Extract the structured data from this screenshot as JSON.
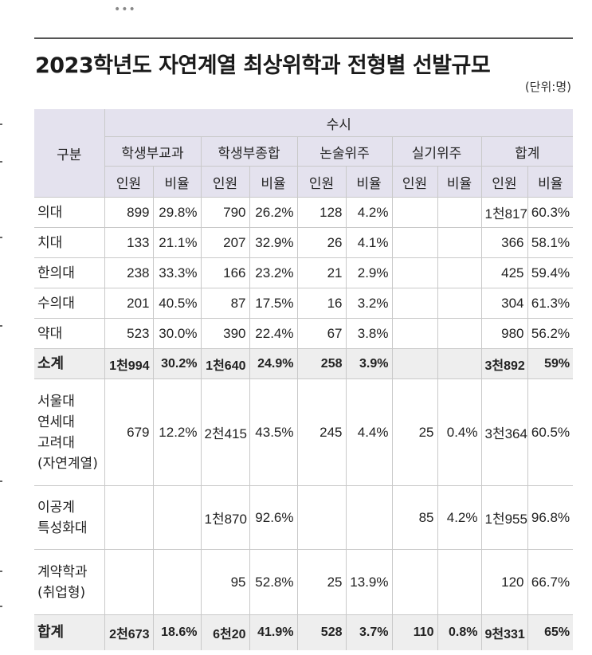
{
  "more_label": "•••",
  "title": "2023학년도 자연계열 최상위학과 전형별 선발규모",
  "unit": "(단위:명)",
  "header": {
    "row_label": "구분",
    "group": "수시",
    "categories": [
      "학생부교과",
      "학생부종합",
      "논술위주",
      "실기위주",
      "합계"
    ],
    "subcols": [
      "인원",
      "비율",
      "인원",
      "비율",
      "인원",
      "비율",
      "인원",
      "비율",
      "인원",
      "비율"
    ]
  },
  "rows": [
    {
      "label": "의대",
      "cells": [
        "899",
        "29.8%",
        "790",
        "26.2%",
        "128",
        "4.2%",
        "",
        "",
        "1천817",
        "60.3%"
      ]
    },
    {
      "label": "치대",
      "cells": [
        "133",
        "21.1%",
        "207",
        "32.9%",
        "26",
        "4.1%",
        "",
        "",
        "366",
        "58.1%"
      ]
    },
    {
      "label": "한의대",
      "cells": [
        "238",
        "33.3%",
        "166",
        "23.2%",
        "21",
        "2.9%",
        "",
        "",
        "425",
        "59.4%"
      ]
    },
    {
      "label": "수의대",
      "cells": [
        "201",
        "40.5%",
        "87",
        "17.5%",
        "16",
        "3.2%",
        "",
        "",
        "304",
        "61.3%"
      ]
    },
    {
      "label": "약대",
      "cells": [
        "523",
        "30.0%",
        "390",
        "22.4%",
        "67",
        "3.8%",
        "",
        "",
        "980",
        "56.2%"
      ]
    },
    {
      "label": "소계",
      "cells": [
        "1천994",
        "30.2%",
        "1천640",
        "24.9%",
        "258",
        "3.9%",
        "",
        "",
        "3천892",
        "59%"
      ]
    },
    {
      "label_lines": [
        "서울대",
        "연세대",
        "고려대",
        "(자연계열)"
      ],
      "cells": [
        "679",
        "12.2%",
        "2천415",
        "43.5%",
        "245",
        "4.4%",
        "25",
        "0.4%",
        "3천364",
        "60.5%"
      ]
    },
    {
      "label_lines": [
        "이공계",
        "특성화대"
      ],
      "cells": [
        "",
        "",
        "1천870",
        "92.6%",
        "",
        "",
        "85",
        "4.2%",
        "1천955",
        "96.8%"
      ]
    },
    {
      "label_lines": [
        "계약학과",
        "(취업형)"
      ],
      "cells": [
        "",
        "",
        "95",
        "52.8%",
        "25",
        "13.9%",
        "",
        "",
        "120",
        "66.7%"
      ]
    },
    {
      "label": "합계",
      "cells": [
        "2천673",
        "18.6%",
        "6천20",
        "41.9%",
        "528",
        "3.7%",
        "110",
        "0.8%",
        "9천331",
        "65%"
      ]
    }
  ]
}
